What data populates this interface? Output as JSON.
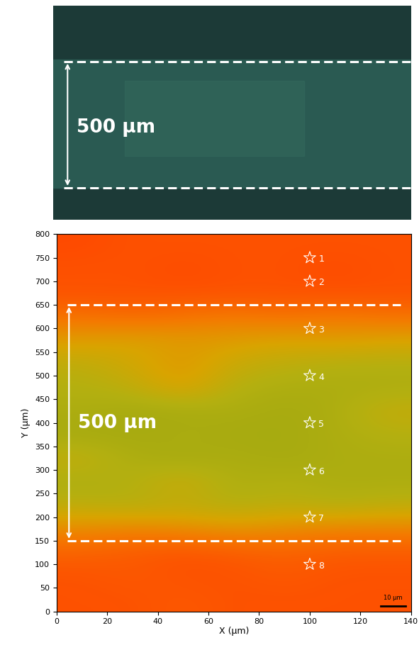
{
  "chart_data": [
    {
      "type": "image",
      "annotation": "500 μm"
    },
    {
      "type": "heatmap",
      "x_label": "X (μm)",
      "y_label": "Y (μm)",
      "xlim": [
        0,
        140
      ],
      "ylim": [
        0,
        800
      ],
      "xticks": [
        0,
        20,
        40,
        60,
        80,
        100,
        120,
        140
      ],
      "yticks": [
        0,
        50,
        100,
        150,
        200,
        250,
        300,
        350,
        400,
        450,
        500,
        550,
        600,
        650,
        700,
        750,
        800
      ],
      "cells": [
        [
          0.05,
          0.05,
          0.1,
          0.05,
          0.05,
          0.05,
          0.05
        ],
        [
          0.05,
          0.1,
          0.05,
          0.05,
          0.1,
          0.05,
          0.05
        ],
        [
          0.15,
          0.1,
          0.05,
          0.1,
          0.15,
          0.1,
          0.1
        ],
        [
          0.4,
          0.35,
          0.4,
          0.45,
          0.4,
          0.35,
          0.35
        ],
        [
          0.7,
          0.75,
          0.7,
          0.75,
          0.7,
          0.75,
          0.7
        ],
        [
          0.8,
          0.75,
          0.6,
          0.8,
          0.75,
          0.8,
          0.8
        ],
        [
          0.65,
          0.8,
          0.85,
          0.8,
          0.85,
          0.8,
          0.8
        ],
        [
          0.85,
          0.85,
          0.8,
          0.85,
          0.85,
          0.8,
          0.75
        ],
        [
          0.8,
          0.85,
          0.85,
          0.8,
          0.85,
          0.8,
          0.65
        ],
        [
          0.75,
          0.7,
          0.5,
          0.75,
          0.8,
          0.8,
          0.8
        ],
        [
          0.7,
          0.6,
          0.45,
          0.65,
          0.7,
          0.75,
          0.75
        ],
        [
          0.5,
          0.55,
          0.5,
          0.5,
          0.55,
          0.5,
          0.55
        ],
        [
          0.25,
          0.2,
          0.25,
          0.3,
          0.25,
          0.3,
          0.25
        ],
        [
          0.05,
          0.05,
          0.05,
          0.05,
          0.05,
          0.05,
          0.05
        ],
        [
          0.05,
          0.05,
          0.0,
          0.05,
          0.05,
          0.0,
          0.05
        ],
        [
          0.0,
          0.05,
          0.05,
          0.05,
          0.05,
          0.05,
          0.05
        ]
      ],
      "points": {
        "x": [
          100,
          100,
          100,
          100,
          100,
          100,
          100,
          100
        ],
        "y": [
          750,
          700,
          600,
          500,
          400,
          300,
          200,
          100
        ],
        "labels": [
          "1",
          "2",
          "3",
          "4",
          "5",
          "6",
          "7",
          "8"
        ],
        "marker": "star"
      },
      "lines": [
        650,
        150
      ],
      "annotation": "500 μm",
      "scale_bar": {
        "label": "10 μm",
        "length": 10
      }
    }
  ]
}
